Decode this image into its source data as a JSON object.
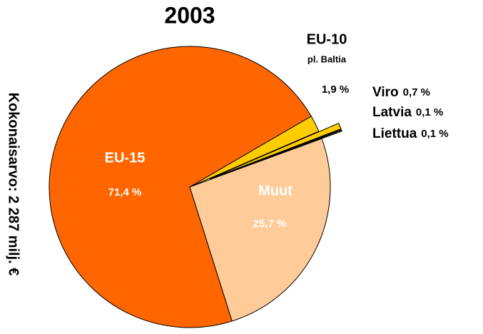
{
  "chart_data": {
    "type": "pie",
    "title": "2003",
    "axis_label": "Kokonaisarvo: 2 287 milj. €",
    "annotation": "pl. Baltia",
    "categories": [
      "EU-15",
      "EU-10",
      "Viro",
      "Latvia",
      "Liettua",
      "Muut"
    ],
    "values": [
      71.4,
      1.9,
      0.7,
      0.1,
      0.1,
      25.7
    ],
    "value_labels": [
      "71,4 %",
      "1,9 %",
      "0,7 %",
      "0,1 %",
      "0,1 %",
      "25,7 %"
    ],
    "colors": [
      "#ff6600",
      "#ffcc00",
      "#ffcc00",
      "#ffcc00",
      "#ffcc00",
      "#ffcc99"
    ]
  }
}
